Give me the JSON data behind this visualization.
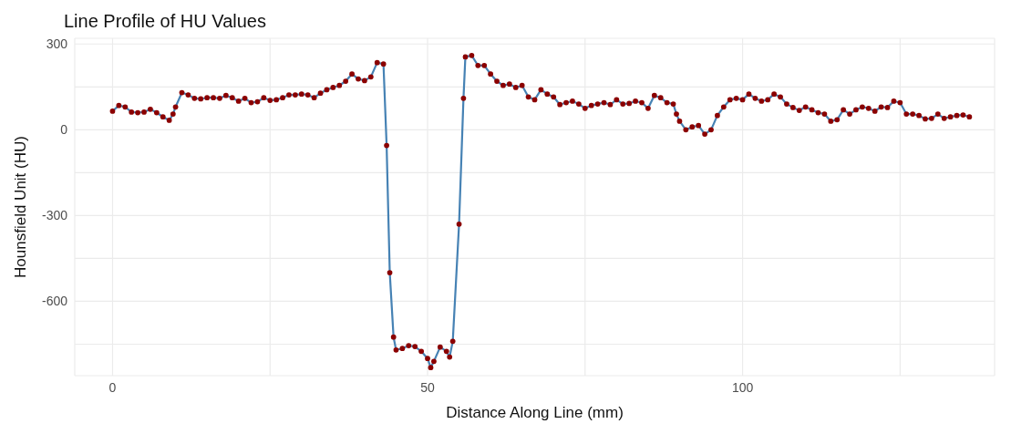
{
  "chart_data": {
    "type": "line",
    "title": "Line Profile of HU Values",
    "xlabel": "Distance Along Line (mm)",
    "ylabel": "Hounsfield Unit (HU)",
    "x": [
      0,
      1,
      2,
      3,
      4,
      5,
      6,
      7,
      8,
      9,
      9.6,
      10,
      11,
      12,
      13,
      14,
      15,
      16,
      17,
      18,
      19,
      20,
      21,
      22,
      23,
      24,
      25,
      26,
      27,
      28,
      29,
      30,
      31,
      32,
      33,
      34,
      35,
      36,
      37,
      38,
      39,
      40,
      41,
      42,
      43,
      43.5,
      44,
      44.6,
      45,
      46,
      47,
      48,
      49,
      50,
      50.5,
      51,
      52,
      53,
      53.5,
      54,
      55,
      55.7,
      56,
      57,
      58,
      59,
      60,
      61,
      62,
      63,
      64,
      65,
      66,
      67,
      68,
      69,
      70,
      71,
      72,
      73,
      74,
      75,
      76,
      77,
      78,
      79,
      80,
      81,
      82,
      83,
      84,
      85,
      86,
      87,
      88,
      89,
      89.5,
      90,
      91,
      92,
      93,
      94,
      95,
      96,
      97,
      98,
      99,
      100,
      101,
      102,
      103,
      104,
      105,
      106,
      107,
      108,
      109,
      110,
      111,
      112,
      113,
      114,
      115,
      116,
      117,
      118,
      119,
      120,
      121,
      122,
      123,
      124,
      125,
      126,
      127,
      128,
      129,
      130,
      131,
      132,
      133,
      134,
      135,
      136
    ],
    "series": [
      {
        "type": "line",
        "color": "#4682b4",
        "marker": "none",
        "values": [
          65,
          85,
          80,
          62,
          60,
          62,
          72,
          60,
          45,
          33,
          55,
          80,
          130,
          122,
          110,
          108,
          112,
          112,
          110,
          120,
          112,
          100,
          110,
          95,
          98,
          112,
          103,
          105,
          112,
          122,
          122,
          125,
          122,
          112,
          128,
          140,
          148,
          155,
          170,
          195,
          178,
          172,
          185,
          235,
          230,
          -55,
          -500,
          -725,
          -770,
          -765,
          -755,
          -758,
          -775,
          -800,
          -832,
          -810,
          -760,
          -775,
          -795,
          -740,
          -330,
          110,
          255,
          260,
          225,
          225,
          195,
          170,
          155,
          160,
          148,
          155,
          115,
          105,
          140,
          125,
          115,
          88,
          95,
          100,
          90,
          75,
          85,
          90,
          95,
          88,
          105,
          90,
          92,
          100,
          95,
          75,
          120,
          112,
          95,
          90,
          55,
          30,
          0,
          10,
          15,
          -15,
          0,
          50,
          80,
          105,
          110,
          105,
          125,
          110,
          100,
          105,
          125,
          115,
          90,
          78,
          68,
          80,
          70,
          60,
          55,
          30,
          35,
          70,
          55,
          70,
          80,
          75,
          65,
          80,
          78,
          100,
          95,
          55,
          55,
          50,
          38,
          40,
          55,
          40,
          45,
          50,
          52,
          45
        ]
      },
      {
        "type": "scatter",
        "color": "#8b0000",
        "marker": "circle",
        "values": [
          65,
          85,
          80,
          62,
          60,
          62,
          72,
          60,
          45,
          33,
          55,
          80,
          130,
          122,
          110,
          108,
          112,
          112,
          110,
          120,
          112,
          100,
          110,
          95,
          98,
          112,
          103,
          105,
          112,
          122,
          122,
          125,
          122,
          112,
          128,
          140,
          148,
          155,
          170,
          195,
          178,
          172,
          185,
          235,
          230,
          -55,
          -500,
          -725,
          -770,
          -765,
          -755,
          -758,
          -775,
          -800,
          -832,
          -810,
          -760,
          -775,
          -795,
          -740,
          -330,
          110,
          255,
          260,
          225,
          225,
          195,
          170,
          155,
          160,
          148,
          155,
          115,
          105,
          140,
          125,
          115,
          88,
          95,
          100,
          90,
          75,
          85,
          90,
          95,
          88,
          105,
          90,
          92,
          100,
          95,
          75,
          120,
          112,
          95,
          90,
          55,
          30,
          0,
          10,
          15,
          -15,
          0,
          50,
          80,
          105,
          110,
          105,
          125,
          110,
          100,
          105,
          125,
          115,
          90,
          78,
          68,
          80,
          70,
          60,
          55,
          30,
          35,
          70,
          55,
          70,
          80,
          75,
          65,
          80,
          78,
          100,
          95,
          55,
          55,
          50,
          38,
          40,
          55,
          40,
          45,
          50,
          52,
          45
        ]
      }
    ],
    "xlim": [
      -6,
      140
    ],
    "xticks": [
      0,
      {
        "value": 25,
        "label": null
      },
      50,
      {
        "value": 75,
        "label": null
      },
      100,
      {
        "value": 125,
        "label": null
      }
    ],
    "ylim": [
      -860,
      320
    ],
    "yticks": [
      {
        "value": -750,
        "label": null
      },
      -600,
      {
        "value": -450,
        "label": null
      },
      -300,
      {
        "value": -150,
        "label": null
      },
      0,
      {
        "value": 150,
        "label": null
      },
      300
    ],
    "grid": true
  }
}
